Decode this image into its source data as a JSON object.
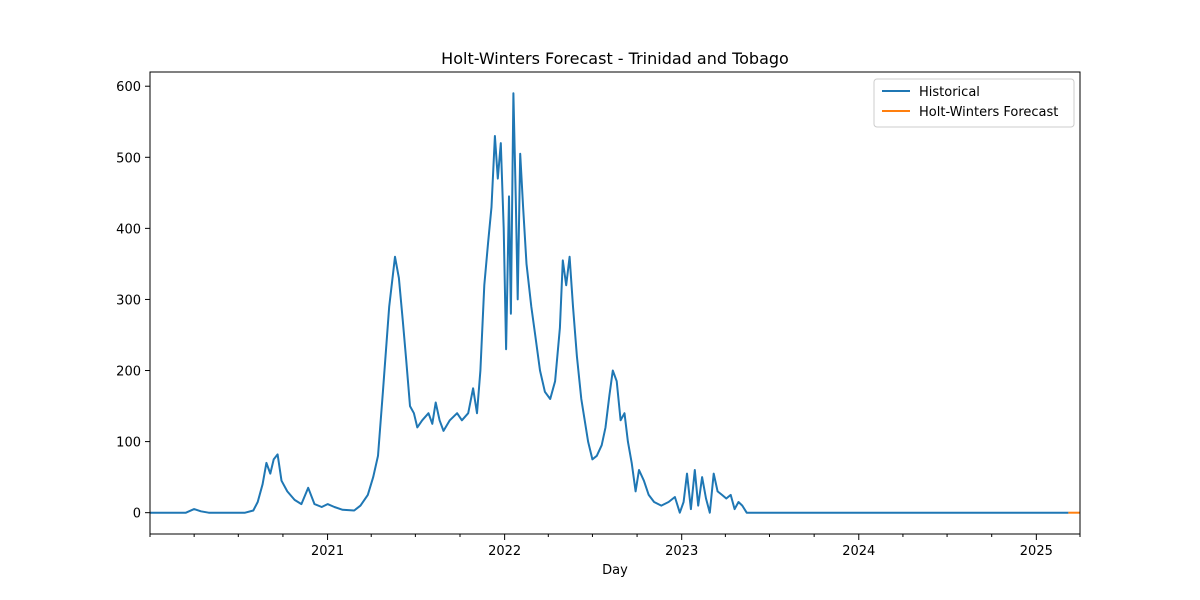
{
  "chart_data": {
    "type": "line",
    "title": "Holt-Winters Forecast - Trinidad and Tobago",
    "xlabel": "Day",
    "ylabel": "",
    "x_axis_kind": "date",
    "xlim": [
      "2020-01-01",
      "2025-04-01"
    ],
    "ylim": [
      -30,
      620
    ],
    "y_ticks": [
      0,
      100,
      200,
      300,
      400,
      500,
      600
    ],
    "x_ticks": [
      {
        "date": "2021-01-01",
        "label": "2021"
      },
      {
        "date": "2022-01-01",
        "label": "2022"
      },
      {
        "date": "2023-01-01",
        "label": "2023"
      },
      {
        "date": "2024-01-01",
        "label": "2024"
      },
      {
        "date": "2025-01-01",
        "label": "2025"
      }
    ],
    "grid": false,
    "legend_position": "top-right",
    "series": [
      {
        "name": "Historical",
        "color": "#1f77b4",
        "points": [
          [
            "2020-01-01",
            0
          ],
          [
            "2020-03-15",
            0
          ],
          [
            "2020-04-01",
            5
          ],
          [
            "2020-04-15",
            2
          ],
          [
            "2020-05-01",
            0
          ],
          [
            "2020-07-15",
            0
          ],
          [
            "2020-08-01",
            3
          ],
          [
            "2020-08-10",
            15
          ],
          [
            "2020-08-20",
            40
          ],
          [
            "2020-08-28",
            70
          ],
          [
            "2020-09-05",
            55
          ],
          [
            "2020-09-12",
            75
          ],
          [
            "2020-09-20",
            82
          ],
          [
            "2020-09-28",
            45
          ],
          [
            "2020-10-10",
            30
          ],
          [
            "2020-10-25",
            18
          ],
          [
            "2020-11-08",
            12
          ],
          [
            "2020-11-22",
            35
          ],
          [
            "2020-12-05",
            12
          ],
          [
            "2020-12-20",
            8
          ],
          [
            "2021-01-01",
            12
          ],
          [
            "2021-01-15",
            8
          ],
          [
            "2021-02-01",
            4
          ],
          [
            "2021-02-25",
            3
          ],
          [
            "2021-03-10",
            10
          ],
          [
            "2021-03-25",
            25
          ],
          [
            "2021-04-05",
            50
          ],
          [
            "2021-04-15",
            80
          ],
          [
            "2021-04-25",
            170
          ],
          [
            "2021-05-08",
            290
          ],
          [
            "2021-05-20",
            360
          ],
          [
            "2021-05-28",
            330
          ],
          [
            "2021-06-05",
            270
          ],
          [
            "2021-06-12",
            215
          ],
          [
            "2021-06-20",
            150
          ],
          [
            "2021-06-28",
            140
          ],
          [
            "2021-07-05",
            120
          ],
          [
            "2021-07-15",
            130
          ],
          [
            "2021-07-28",
            140
          ],
          [
            "2021-08-05",
            125
          ],
          [
            "2021-08-12",
            155
          ],
          [
            "2021-08-20",
            130
          ],
          [
            "2021-08-28",
            115
          ],
          [
            "2021-09-10",
            130
          ],
          [
            "2021-09-25",
            140
          ],
          [
            "2021-10-05",
            130
          ],
          [
            "2021-10-18",
            140
          ],
          [
            "2021-10-28",
            175
          ],
          [
            "2021-11-05",
            140
          ],
          [
            "2021-11-12",
            200
          ],
          [
            "2021-11-20",
            320
          ],
          [
            "2021-11-28",
            380
          ],
          [
            "2021-12-05",
            430
          ],
          [
            "2021-12-12",
            530
          ],
          [
            "2021-12-18",
            470
          ],
          [
            "2021-12-24",
            520
          ],
          [
            "2021-12-30",
            400
          ],
          [
            "2022-01-04",
            230
          ],
          [
            "2022-01-10",
            445
          ],
          [
            "2022-01-14",
            280
          ],
          [
            "2022-01-19",
            590
          ],
          [
            "2022-01-24",
            440
          ],
          [
            "2022-01-28",
            300
          ],
          [
            "2022-02-02",
            505
          ],
          [
            "2022-02-08",
            430
          ],
          [
            "2022-02-15",
            350
          ],
          [
            "2022-02-25",
            290
          ],
          [
            "2022-03-05",
            250
          ],
          [
            "2022-03-15",
            200
          ],
          [
            "2022-03-25",
            170
          ],
          [
            "2022-04-05",
            160
          ],
          [
            "2022-04-15",
            185
          ],
          [
            "2022-04-25",
            260
          ],
          [
            "2022-05-01",
            355
          ],
          [
            "2022-05-08",
            320
          ],
          [
            "2022-05-15",
            360
          ],
          [
            "2022-05-22",
            290
          ],
          [
            "2022-05-30",
            220
          ],
          [
            "2022-06-08",
            160
          ],
          [
            "2022-06-15",
            130
          ],
          [
            "2022-06-22",
            100
          ],
          [
            "2022-07-01",
            75
          ],
          [
            "2022-07-10",
            80
          ],
          [
            "2022-07-20",
            95
          ],
          [
            "2022-07-28",
            120
          ],
          [
            "2022-08-05",
            165
          ],
          [
            "2022-08-12",
            200
          ],
          [
            "2022-08-20",
            185
          ],
          [
            "2022-08-28",
            130
          ],
          [
            "2022-09-05",
            140
          ],
          [
            "2022-09-12",
            100
          ],
          [
            "2022-09-20",
            70
          ],
          [
            "2022-09-28",
            30
          ],
          [
            "2022-10-05",
            60
          ],
          [
            "2022-10-15",
            45
          ],
          [
            "2022-10-25",
            25
          ],
          [
            "2022-11-05",
            15
          ],
          [
            "2022-11-20",
            10
          ],
          [
            "2022-12-05",
            15
          ],
          [
            "2022-12-18",
            22
          ],
          [
            "2022-12-28",
            0
          ],
          [
            "2023-01-05",
            15
          ],
          [
            "2023-01-12",
            55
          ],
          [
            "2023-01-20",
            5
          ],
          [
            "2023-01-28",
            60
          ],
          [
            "2023-02-04",
            10
          ],
          [
            "2023-02-12",
            50
          ],
          [
            "2023-02-20",
            20
          ],
          [
            "2023-02-28",
            0
          ],
          [
            "2023-03-08",
            55
          ],
          [
            "2023-03-16",
            30
          ],
          [
            "2023-03-25",
            25
          ],
          [
            "2023-04-03",
            20
          ],
          [
            "2023-04-12",
            25
          ],
          [
            "2023-04-20",
            5
          ],
          [
            "2023-04-28",
            15
          ],
          [
            "2023-05-06",
            10
          ],
          [
            "2023-05-15",
            0
          ],
          [
            "2025-03-08",
            0
          ]
        ]
      },
      {
        "name": "Holt-Winters Forecast",
        "color": "#ff7f0e",
        "points": [
          [
            "2025-03-08",
            0
          ],
          [
            "2025-04-01",
            0
          ]
        ]
      }
    ]
  }
}
